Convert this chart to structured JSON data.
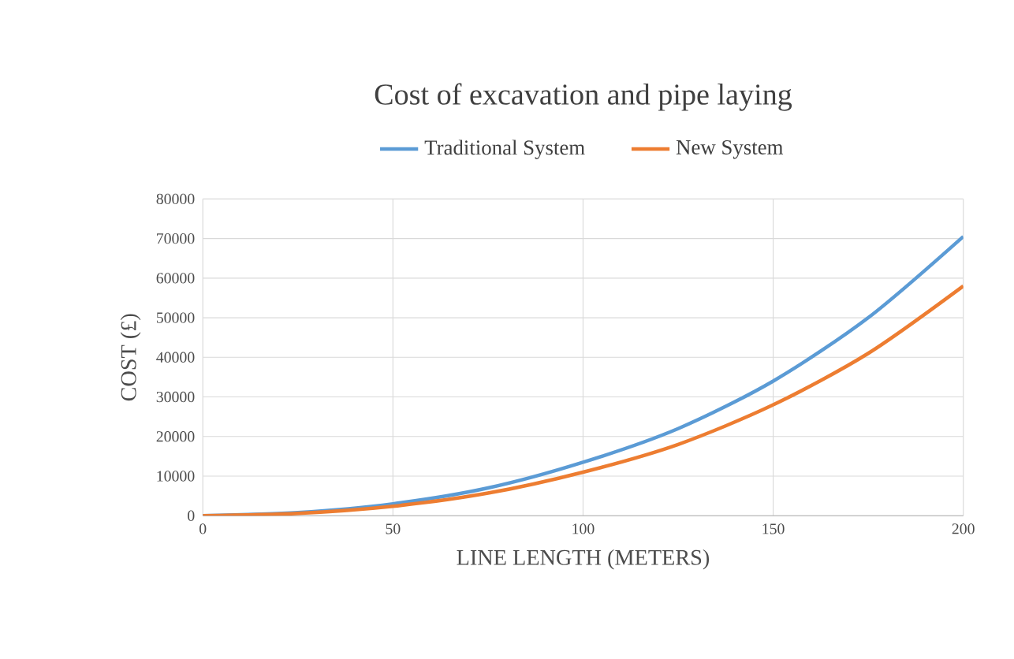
{
  "chart_data": {
    "type": "line",
    "title": "Cost of excavation and pipe laying",
    "xlabel": "LINE LENGTH (METERS)",
    "ylabel": "COST (£)",
    "x": [
      0,
      25,
      50,
      75,
      100,
      125,
      150,
      175,
      200
    ],
    "series": [
      {
        "name": "Traditional System",
        "color": "#5b9bd5",
        "values": [
          0,
          800,
          3000,
          7000,
          13500,
          22000,
          34000,
          50000,
          70500
        ]
      },
      {
        "name": "New System",
        "color": "#ed7d31",
        "values": [
          0,
          600,
          2400,
          5700,
          11000,
          18000,
          28000,
          41000,
          58000
        ]
      }
    ],
    "xlim": [
      0,
      200
    ],
    "xticks": [
      0,
      50,
      100,
      150,
      200
    ],
    "ylim": [
      0,
      80000
    ],
    "yticks": [
      0,
      10000,
      20000,
      30000,
      40000,
      50000,
      60000,
      70000,
      80000
    ],
    "grid": true,
    "legend": "top",
    "marker": "none",
    "line_style": "solid"
  }
}
